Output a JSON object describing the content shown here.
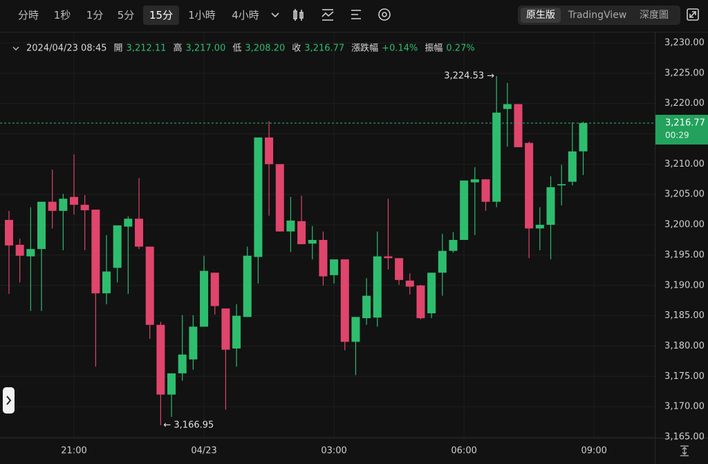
{
  "toolbar": {
    "intervals": [
      "分時",
      "1秒",
      "1分",
      "5分",
      "15分",
      "1小時",
      "4小時"
    ],
    "selected": "15分",
    "views": [
      "原生版",
      "TradingView",
      "深度圖"
    ],
    "selected_view": "原生版"
  },
  "info": {
    "time": "2024/04/23 08:45",
    "fields": [
      {
        "label": "開",
        "value": "3,212.11"
      },
      {
        "label": "高",
        "value": "3,217.00"
      },
      {
        "label": "低",
        "value": "3,208.20"
      },
      {
        "label": "收",
        "value": "3,216.77"
      },
      {
        "label": "漲跌幅",
        "value": "+0.14%"
      },
      {
        "label": "振幅",
        "value": "0.27%"
      }
    ]
  },
  "chart_data": {
    "type": "candlestick",
    "up_color": "#2ebd6e",
    "down_color": "#e0456b",
    "open": [
      3200.8,
      3196.7,
      3194.8,
      3196.0,
      3203.8,
      3202.3,
      3204.6,
      3203.3,
      3202.5,
      3188.7,
      3192.9,
      3199.7,
      3201.0,
      3196.4,
      3183.5,
      3172.0,
      3175.5,
      3177.8,
      3183.2,
      3192.1,
      3186.2,
      3179.6,
      3184.8,
      3194.7,
      3214.4,
      3210.0,
      3198.9,
      3200.6,
      3196.9,
      3197.5,
      3191.7,
      3194.3,
      3180.7,
      3184.6,
      3184.7,
      3194.8,
      3194.5,
      3190.8,
      3190.0,
      3185.4,
      3192.1,
      3195.7,
      3197.5,
      3207.0,
      3207.5,
      3203.8,
      3219.1,
      3219.9,
      3213.5,
      3199.4,
      3200.0,
      3206.5,
      3207.1,
      3212.11
    ],
    "high": [
      3202.3,
      3197.7,
      3202.9,
      3203.8,
      3209.1,
      3205.1,
      3211.6,
      3204.9,
      3202.5,
      3198.3,
      3199.9,
      3201.4,
      3207.7,
      3196.4,
      3184.0,
      3175.5,
      3185.1,
      3185.1,
      3194.9,
      3192.1,
      3186.2,
      3186.9,
      3196.4,
      3214.4,
      3217.1,
      3210.0,
      3204.6,
      3204.8,
      3199.8,
      3198.9,
      3194.3,
      3194.3,
      3184.8,
      3191.2,
      3198.9,
      3204.3,
      3194.5,
      3192.0,
      3190.1,
      3192.1,
      3198.5,
      3198.8,
      3207.3,
      3209.5,
      3207.5,
      3224.53,
      3223.4,
      3219.9,
      3213.7,
      3202.9,
      3208.0,
      3209.9,
      3216.9,
      3217.0
    ],
    "low": [
      3188.6,
      3190.5,
      3185.8,
      3185.8,
      3199.4,
      3195.8,
      3201.7,
      3195.8,
      3176.6,
      3186.9,
      3190.5,
      3188.6,
      3196.0,
      3181.2,
      3166.95,
      3168.3,
      3174.3,
      3176.1,
      3183.2,
      3185.2,
      3169.5,
      3176.6,
      3184.8,
      3190.3,
      3201.5,
      3198.9,
      3195.5,
      3196.8,
      3194.3,
      3190.0,
      3190.3,
      3179.3,
      3175.2,
      3183.5,
      3183.2,
      3192.6,
      3190.1,
      3188.5,
      3184.4,
      3184.6,
      3188.3,
      3195.4,
      3197.5,
      3198.3,
      3202.3,
      3202.9,
      3212.9,
      3212.8,
      3194.5,
      3195.8,
      3194.3,
      3203.2,
      3206.5,
      3208.2
    ],
    "close": [
      3196.6,
      3194.9,
      3196.0,
      3203.8,
      3202.3,
      3204.3,
      3203.3,
      3202.4,
      3188.7,
      3192.3,
      3199.9,
      3201.0,
      3196.4,
      3183.5,
      3172.0,
      3175.5,
      3178.6,
      3183.2,
      3192.4,
      3186.6,
      3179.4,
      3185.0,
      3194.9,
      3214.4,
      3210.0,
      3198.9,
      3200.7,
      3196.8,
      3197.5,
      3191.5,
      3194.3,
      3180.7,
      3184.8,
      3188.3,
      3194.8,
      3194.5,
      3190.9,
      3189.8,
      3184.6,
      3192.1,
      3195.7,
      3197.5,
      3207.3,
      3207.5,
      3203.8,
      3218.5,
      3219.9,
      3212.8,
      3199.4,
      3200.0,
      3206.2,
      3206.7,
      3212.1,
      3216.77
    ],
    "ylim": [
      3165,
      3230
    ],
    "yticks": [
      {
        "value": 3165,
        "label": "3,165.00"
      },
      {
        "value": 3170,
        "label": "3,170.00"
      },
      {
        "value": 3175,
        "label": "3,175.00"
      },
      {
        "value": 3180,
        "label": "3,180.00"
      },
      {
        "value": 3185,
        "label": "3,185.00"
      },
      {
        "value": 3190,
        "label": "3,190.00"
      },
      {
        "value": 3195,
        "label": "3,195.00"
      },
      {
        "value": 3200,
        "label": "3,200.00"
      },
      {
        "value": 3205,
        "label": "3,205.00"
      },
      {
        "value": 3210,
        "label": "3,210.00"
      },
      {
        "value": 3215,
        "label": "3,215.00"
      },
      {
        "value": 3220,
        "label": "3,220.00"
      },
      {
        "value": 3225,
        "label": "3,225.00"
      },
      {
        "value": 3230,
        "label": "3,230.00"
      }
    ],
    "xticks": [
      {
        "value": 6,
        "label": "21:00"
      },
      {
        "value": 18,
        "label": "04/23"
      },
      {
        "value": 30,
        "label": "03:00"
      },
      {
        "value": 42,
        "label": "06:00"
      },
      {
        "value": 54,
        "label": "09:00"
      }
    ],
    "grid": true,
    "last_price": {
      "value": 3216.77,
      "label": "3,216.77",
      "countdown": "00:29"
    },
    "annotations": [
      {
        "value": 3224.53,
        "index": 45,
        "label": "3,224.53 →",
        "side": "left"
      },
      {
        "value": 3166.95,
        "index": 14,
        "label": "← 3,166.95",
        "side": "right"
      }
    ]
  }
}
